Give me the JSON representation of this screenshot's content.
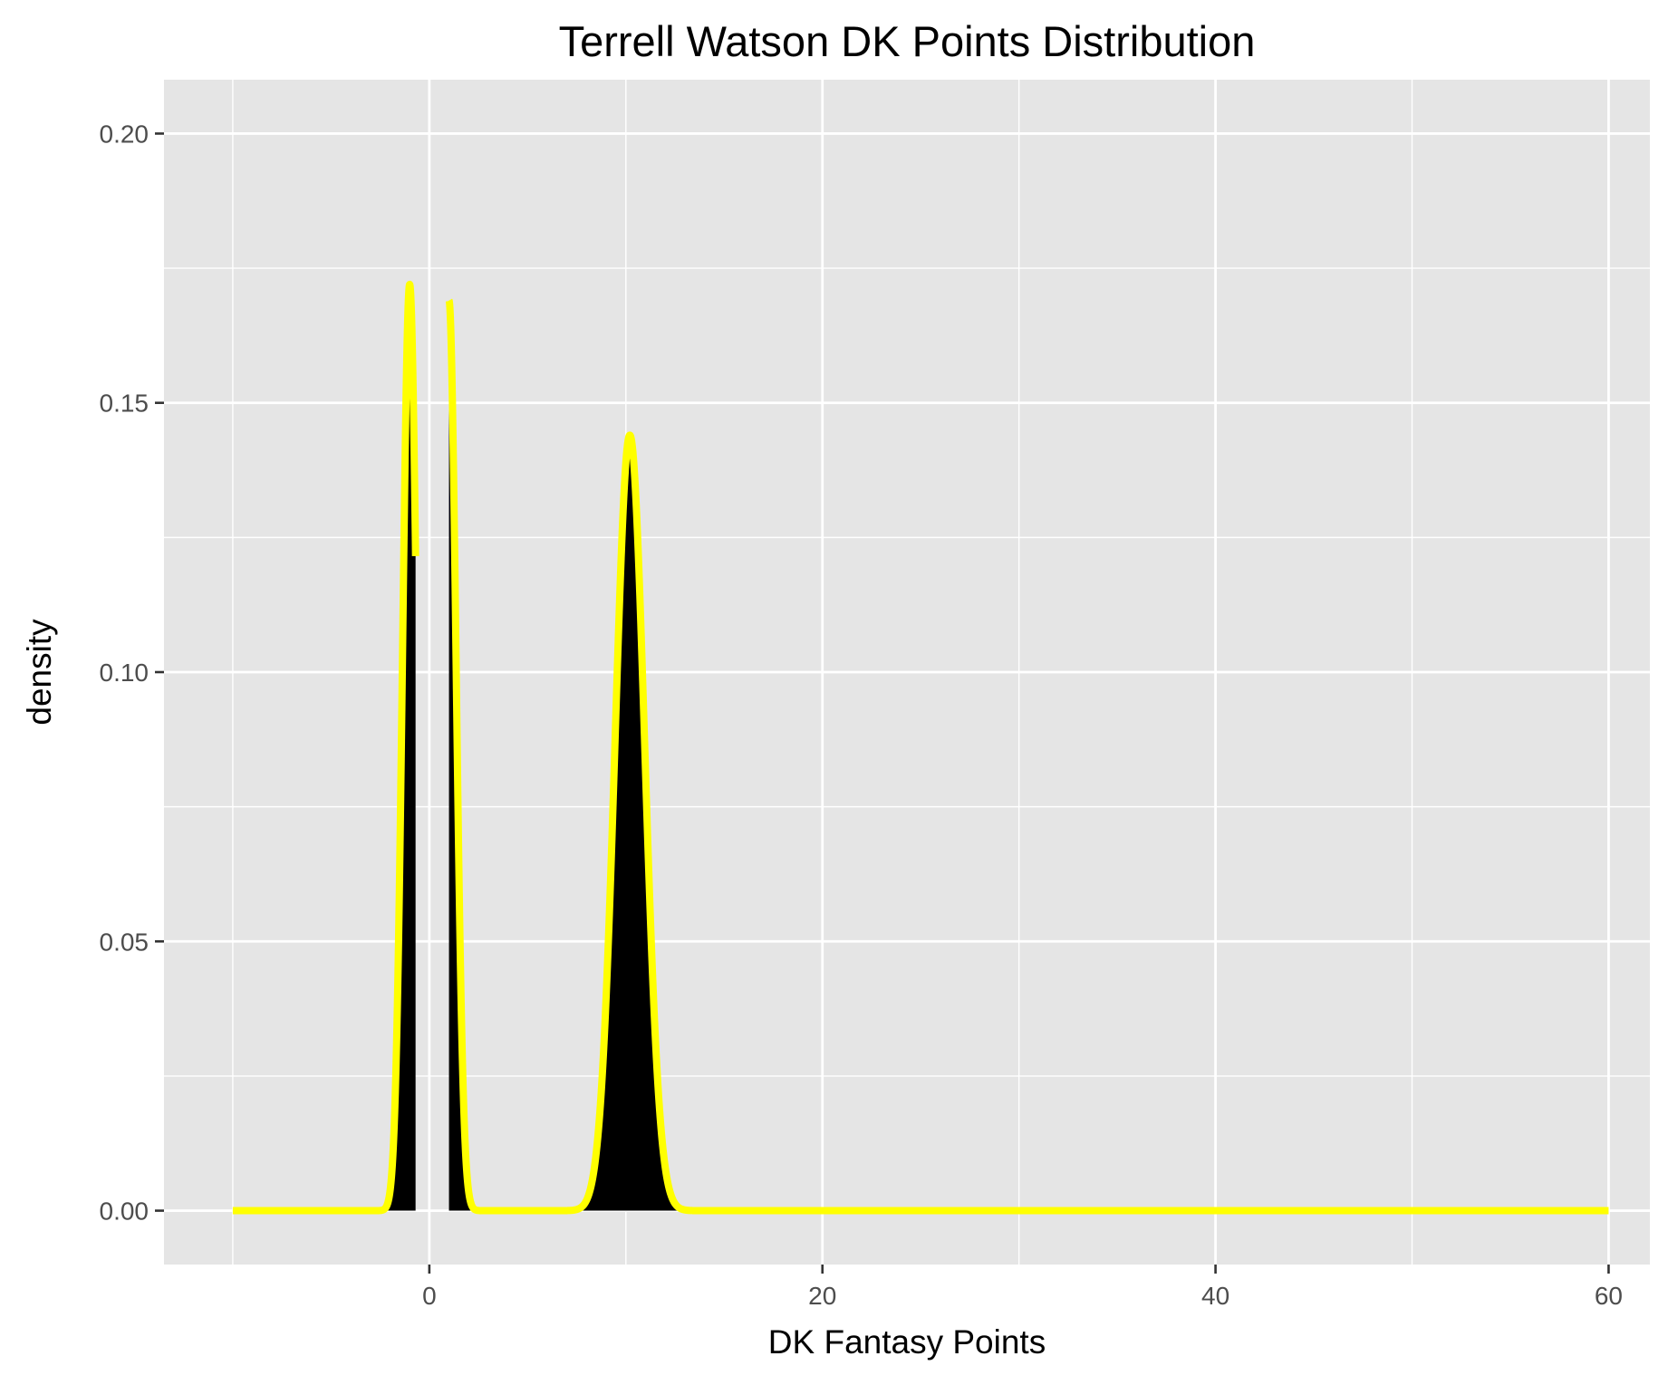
{
  "chart_data": {
    "type": "area",
    "title": "Terrell Watson DK Points Distribution",
    "xlabel": "DK Fantasy Points",
    "ylabel": "density",
    "xlim": [
      -13.5,
      62.1
    ],
    "ylim": [
      -0.01,
      0.21
    ],
    "x_ticks": [
      0,
      20,
      40,
      60
    ],
    "x_tick_labels": [
      "0",
      "20",
      "40",
      "60"
    ],
    "y_ticks": [
      0.0,
      0.05,
      0.1,
      0.15,
      0.2
    ],
    "y_tick_labels": [
      "0.00",
      "0.05",
      "0.10",
      "0.15",
      "0.20"
    ],
    "x_minor_ticks": [
      -10,
      10,
      30,
      50
    ],
    "y_minor_ticks": [
      0.025,
      0.075,
      0.125,
      0.175
    ],
    "grid": true,
    "legend": "none",
    "x_range_drawn": [
      -10,
      60
    ],
    "series": [
      {
        "peaks": [
          {
            "center": -1.0,
            "sd": 0.36,
            "height": 0.172,
            "range": [
              -10,
              -0.7
            ]
          },
          {
            "center": 1.0,
            "sd": 0.36,
            "height": 0.169,
            "range": [
              1.0,
              60
            ]
          },
          {
            "center": 10.2,
            "sd": 0.75,
            "height": 0.144,
            "range": [
              1.0,
              60
            ]
          }
        ]
      }
    ]
  },
  "colors": {
    "panel_background": "#e5e5e5",
    "gridline": "#ffffff",
    "fill": "#000000",
    "outline": "#ffff00",
    "tick_text": "#4d4d4d",
    "tick_mark": "#333333"
  }
}
